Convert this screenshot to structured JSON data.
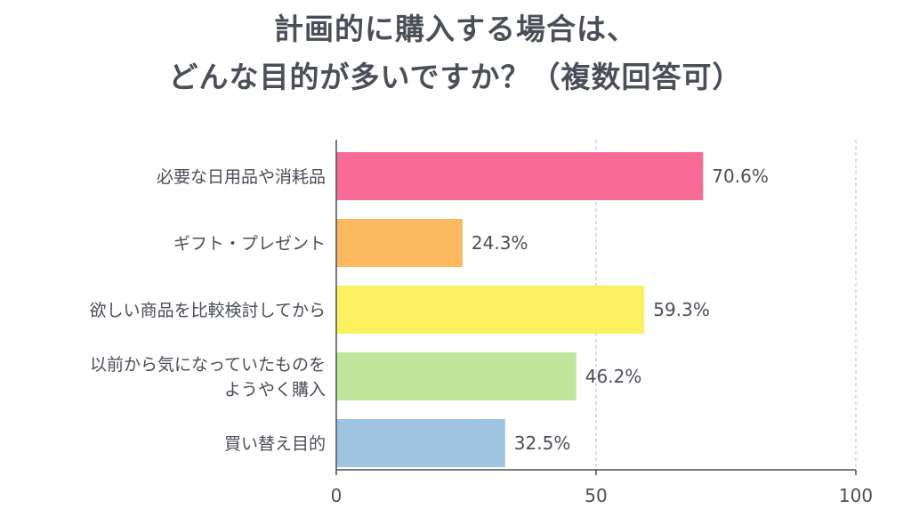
{
  "chart_data": {
    "type": "bar",
    "orientation": "horizontal",
    "title_lines": [
      "計画的に購入する場合は、",
      "どんな目的が多いですか？（複数回答可）"
    ],
    "categories": [
      [
        "必要な日用品や消耗品"
      ],
      [
        "ギフト・プレゼント"
      ],
      [
        "欲しい商品を比較検討してから"
      ],
      [
        "以前から気になっていたものを",
        "ようやく購入"
      ],
      [
        "買い替え目的"
      ]
    ],
    "values": [
      70.6,
      24.3,
      59.3,
      46.2,
      32.5
    ],
    "value_labels": [
      "70.6%",
      "24.3%",
      "59.3%",
      "46.2%",
      "32.5%"
    ],
    "colors": [
      "#f86b96",
      "#fcb85e",
      "#fbf05f",
      "#bde69b",
      "#9fc4e2"
    ],
    "xlim": [
      0,
      100
    ],
    "xticks": [
      0,
      50,
      100
    ],
    "xtick_labels": [
      "0",
      "50",
      "100"
    ],
    "gridlines": [
      50,
      100
    ],
    "xlabel": "",
    "ylabel": ""
  }
}
